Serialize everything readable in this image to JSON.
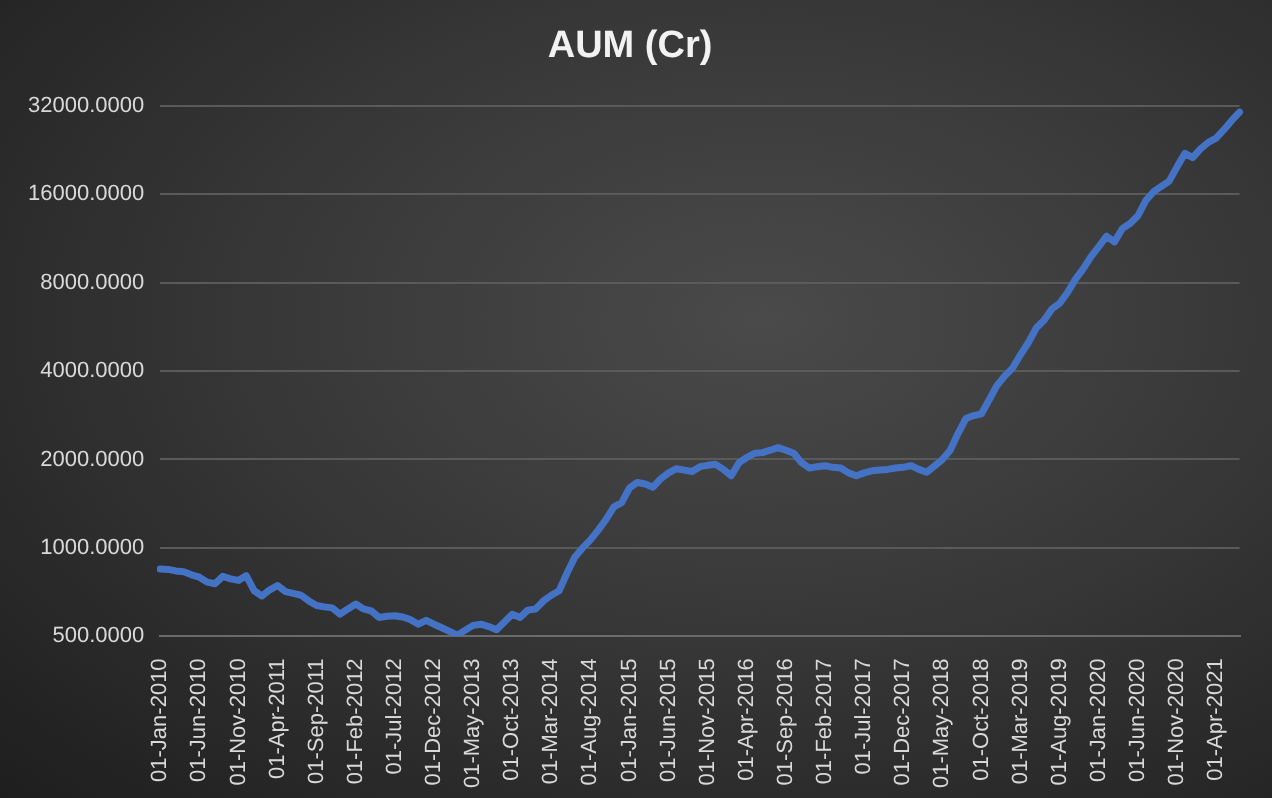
{
  "chart_data": {
    "type": "line",
    "title": "AUM (Cr)",
    "categories": [
      "01-Jan-2010",
      null,
      null,
      null,
      null,
      "01-Jun-2010",
      null,
      null,
      null,
      null,
      "01-Nov-2010",
      null,
      null,
      null,
      null,
      "01-Apr-2011",
      null,
      null,
      null,
      null,
      "01-Sep-2011",
      null,
      null,
      null,
      null,
      "01-Feb-2012",
      null,
      null,
      null,
      null,
      "01-Jul-2012",
      null,
      null,
      null,
      null,
      "01-Dec-2012",
      null,
      null,
      null,
      null,
      "01-May-2013",
      null,
      null,
      null,
      null,
      "01-Oct-2013",
      null,
      null,
      null,
      null,
      "01-Mar-2014",
      null,
      null,
      null,
      null,
      "01-Aug-2014",
      null,
      null,
      null,
      null,
      "01-Jan-2015",
      null,
      null,
      null,
      null,
      "01-Jun-2015",
      null,
      null,
      null,
      null,
      "01-Nov-2015",
      null,
      null,
      null,
      null,
      "01-Apr-2016",
      null,
      null,
      null,
      null,
      "01-Sep-2016",
      null,
      null,
      null,
      null,
      "01-Feb-2017",
      null,
      null,
      null,
      null,
      "01-Jul-2017",
      null,
      null,
      null,
      null,
      "01-Dec-2017",
      null,
      null,
      null,
      null,
      "01-May-2018",
      null,
      null,
      null,
      null,
      "01-Oct-2018",
      null,
      null,
      null,
      null,
      "01-Mar-2019",
      null,
      null,
      null,
      null,
      "01-Aug-2019",
      null,
      null,
      null,
      null,
      "01-Jan-2020",
      null,
      null,
      null,
      null,
      "01-Jun-2020",
      null,
      null,
      null,
      null,
      "01-Nov-2020",
      null,
      null,
      null,
      null,
      "01-Apr-2021",
      null,
      null,
      null
    ],
    "series": [
      {
        "color": "#4472c4",
        "values": [
          847,
          845,
          835,
          830,
          810,
          795,
          765,
          755,
          800,
          785,
          775,
          805,
          715,
          686,
          720,
          745,
          710,
          700,
          690,
          660,
          637,
          630,
          625,
          595,
          620,
          644,
          620,
          610,
          580,
          585,
          588,
          582,
          570,
          550,
          567,
          550,
          535,
          520,
          505,
          525,
          545,
          550,
          540,
          527,
          560,
          595,
          580,
          614,
          620,
          660,
          690,
          715,
          820,
          930,
          1000,
          1065,
          1150,
          1250,
          1380,
          1425,
          1600,
          1670,
          1650,
          1610,
          1720,
          1800,
          1860,
          1840,
          1820,
          1890,
          1910,
          1925,
          1850,
          1760,
          1950,
          2030,
          2100,
          2110,
          2150,
          2195,
          2150,
          2100,
          1950,
          1870,
          1890,
          1905,
          1880,
          1870,
          1800,
          1760,
          1800,
          1830,
          1840,
          1850,
          1870,
          1880,
          1905,
          1850,
          1810,
          1900,
          2000,
          2150,
          2450,
          2755,
          2820,
          2860,
          3200,
          3580,
          3850,
          4100,
          4550,
          5000,
          5600,
          5950,
          6500,
          6800,
          7400,
          8200,
          8900,
          9800,
          10600,
          11500,
          11000,
          12200,
          12700,
          13500,
          15200,
          16300,
          17000,
          17700,
          19800,
          22000,
          21300,
          22800,
          24000,
          24800,
          26500,
          28500,
          30400
        ]
      }
    ],
    "log": "y",
    "ylim": [
      500,
      32000
    ],
    "yticks": [
      {
        "value": 500,
        "label": "500.0000"
      },
      {
        "value": 1000,
        "label": "1000.0000"
      },
      {
        "value": 2000,
        "label": "2000.0000"
      },
      {
        "value": 4000,
        "label": "4000.0000"
      },
      {
        "value": 8000,
        "label": "8000.0000"
      },
      {
        "value": 16000,
        "label": "16000.0000"
      },
      {
        "value": 32000,
        "label": "32000.0000"
      }
    ],
    "grid": "y",
    "marker": "none",
    "line_style": "solid"
  }
}
